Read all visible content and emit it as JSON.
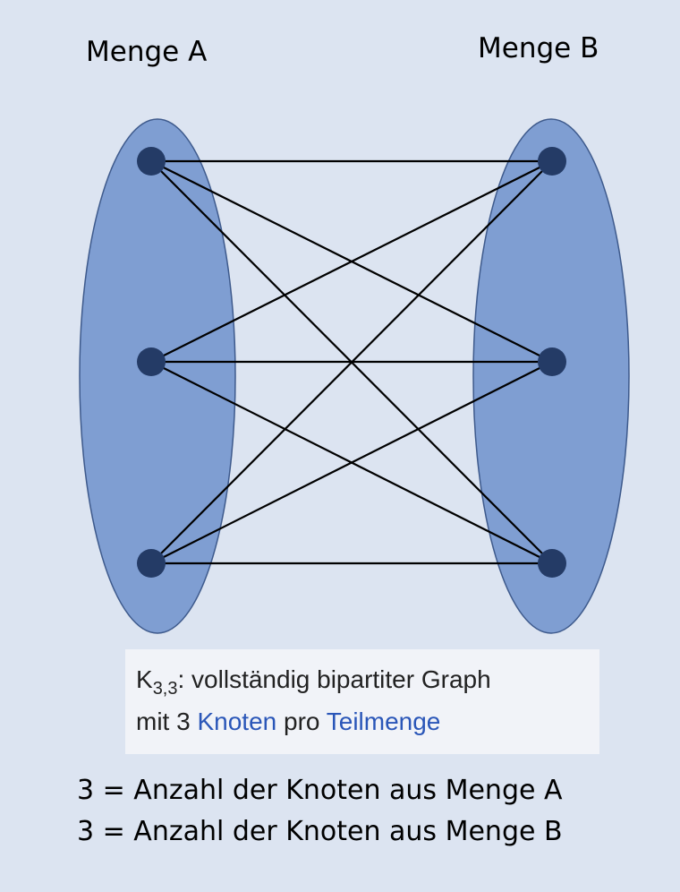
{
  "sets": {
    "a": {
      "label": "Menge A"
    },
    "b": {
      "label": "Menge B"
    }
  },
  "caption": {
    "symbol": "K",
    "subscript": "3,3",
    "line1_rest": ": vollständig bipartiter Graph",
    "line2_prefix": "mit 3 ",
    "line2_link1": "Knoten",
    "line2_mid": " pro ",
    "line2_link2": "Teilmenge"
  },
  "counts": {
    "line_a": "3 = Anzahl der Knoten aus Menge A",
    "line_b": "3 = Anzahl der Knoten aus Menge B"
  },
  "colors": {
    "background": "#dce4f1",
    "ellipse_fill": "#7f9ed2",
    "ellipse_stroke": "#3e5a8c",
    "node": "#243b66",
    "edge": "#000000",
    "link_text": "#2a56b8"
  }
}
